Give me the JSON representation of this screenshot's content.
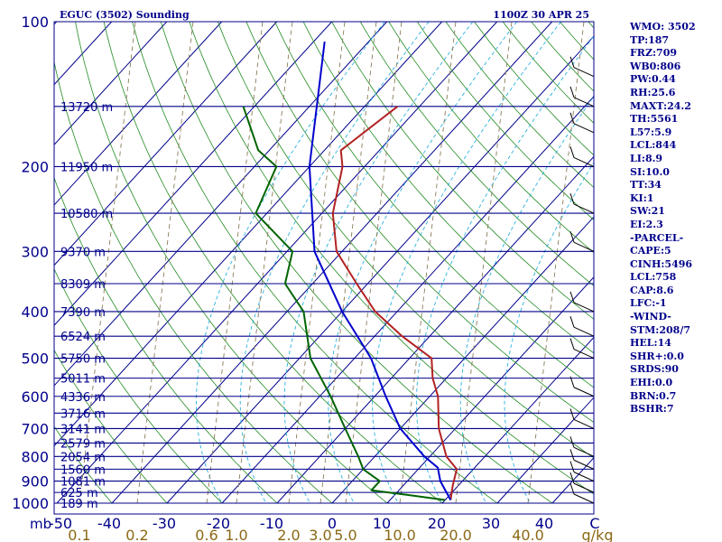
{
  "header": {
    "title": "EGUC (3502) Sounding",
    "datetime": "1100Z 30 APR 25"
  },
  "stats": [
    "WMO: 3502",
    "TP:187",
    "FRZ:709",
    "WB0:806",
    "PW:0.44",
    "RH:25.6",
    "MAXT:24.2",
    "TH:5561",
    "L57:5.9",
    "LCL:844",
    "LI:8.9",
    "SI:10.0",
    "TT:34",
    "KI:1",
    "SW:21",
    "EI:2.3",
    "-PARCEL-",
    "CAPE:5",
    "CINH:5496",
    "LCL:758",
    "CAP:8.6",
    "LFC:-1",
    "-WIND-",
    "STM:208/7",
    "HEL:14",
    "SHR+:0.0",
    "SRDS:90",
    "EHI:0.0",
    "BRN:0.7",
    "BSHR:7"
  ],
  "colors": {
    "isobar": "#00008b",
    "isotherm": "#00008b",
    "dry_adiabat": "#228b22",
    "moist_adiabat": "#2ab1dd",
    "mixing_ratio": "#8b7d5a",
    "temperature": "#b22222",
    "dewpoint": "#006400",
    "parcel": "#0000cd",
    "text": "#00008b",
    "mixing_label": "#8b6914"
  },
  "chart_data": {
    "type": "skew-t",
    "pressure_axis": {
      "unit_label": "mb",
      "range": [
        1000,
        100
      ],
      "log_scale": true,
      "tick_labels": [
        100,
        200,
        300,
        400,
        500,
        600,
        700,
        800,
        900,
        1000
      ]
    },
    "temperature_axis": {
      "unit_label": "C",
      "tick_labels": [
        -50,
        -40,
        -30,
        -20,
        -10,
        0,
        10,
        20,
        30,
        40
      ],
      "skewed": true
    },
    "mixing_ratio_axis": {
      "unit_label": "g/kg",
      "tick_labels": [
        "0.1",
        "0.2",
        "0.6",
        "1.0",
        "2.0",
        "3.0",
        "5.0",
        "10.0",
        "20.0",
        "40.0"
      ]
    },
    "height_labels": [
      {
        "p": 150,
        "label": "13720 m"
      },
      {
        "p": 200,
        "label": "11950 m"
      },
      {
        "p": 250,
        "label": "10580 m"
      },
      {
        "p": 300,
        "label": "9370 m"
      },
      {
        "p": 350,
        "label": "8309 m"
      },
      {
        "p": 400,
        "label": "7390 m"
      },
      {
        "p": 450,
        "label": "6524 m"
      },
      {
        "p": 500,
        "label": "5750 m"
      },
      {
        "p": 550,
        "label": "5011 m"
      },
      {
        "p": 600,
        "label": "4336 m"
      },
      {
        "p": 650,
        "label": "3716 m"
      },
      {
        "p": 700,
        "label": "3141 m"
      },
      {
        "p": 750,
        "label": "2579 m"
      },
      {
        "p": 800,
        "label": "2054 m"
      },
      {
        "p": 850,
        "label": "1560 m"
      },
      {
        "p": 900,
        "label": "1081 m"
      },
      {
        "p": 950,
        "label": "625 m"
      },
      {
        "p": 1000,
        "label": "189 m"
      }
    ],
    "series": [
      {
        "name": "temperature",
        "points": [
          [
            150,
            -54
          ],
          [
            185,
            -57
          ],
          [
            200,
            -54
          ],
          [
            250,
            -48
          ],
          [
            300,
            -41
          ],
          [
            350,
            -32
          ],
          [
            400,
            -24
          ],
          [
            450,
            -15
          ],
          [
            500,
            -6
          ],
          [
            550,
            -2.5
          ],
          [
            600,
            1.5
          ],
          [
            700,
            7
          ],
          [
            800,
            13
          ],
          [
            850,
            17
          ],
          [
            920,
            19
          ],
          [
            985,
            21
          ]
        ]
      },
      {
        "name": "dewpoint",
        "points": [
          [
            150,
            -82
          ],
          [
            185,
            -72
          ],
          [
            200,
            -66
          ],
          [
            250,
            -62
          ],
          [
            300,
            -49
          ],
          [
            350,
            -45
          ],
          [
            400,
            -37
          ],
          [
            500,
            -28
          ],
          [
            600,
            -18
          ],
          [
            700,
            -10
          ],
          [
            800,
            -3
          ],
          [
            850,
            0
          ],
          [
            900,
            5
          ],
          [
            940,
            5
          ],
          [
            960,
            12
          ],
          [
            985,
            20
          ]
        ]
      },
      {
        "name": "parcel",
        "points": [
          [
            985,
            21
          ],
          [
            900,
            16
          ],
          [
            844,
            13.3
          ],
          [
            800,
            9
          ],
          [
            700,
            0
          ],
          [
            600,
            -8
          ],
          [
            500,
            -17
          ],
          [
            400,
            -30
          ],
          [
            300,
            -45
          ],
          [
            200,
            -60
          ],
          [
            110,
            -78
          ]
        ]
      }
    ],
    "wind_barbs": [
      {
        "p": 130
      },
      {
        "p": 150
      },
      {
        "p": 170
      },
      {
        "p": 200
      },
      {
        "p": 250
      },
      {
        "p": 300
      },
      {
        "p": 400
      },
      {
        "p": 450
      },
      {
        "p": 500
      },
      {
        "p": 600
      },
      {
        "p": 700
      },
      {
        "p": 800
      },
      {
        "p": 850
      },
      {
        "p": 900
      },
      {
        "p": 950
      },
      {
        "p": 1000
      }
    ]
  }
}
